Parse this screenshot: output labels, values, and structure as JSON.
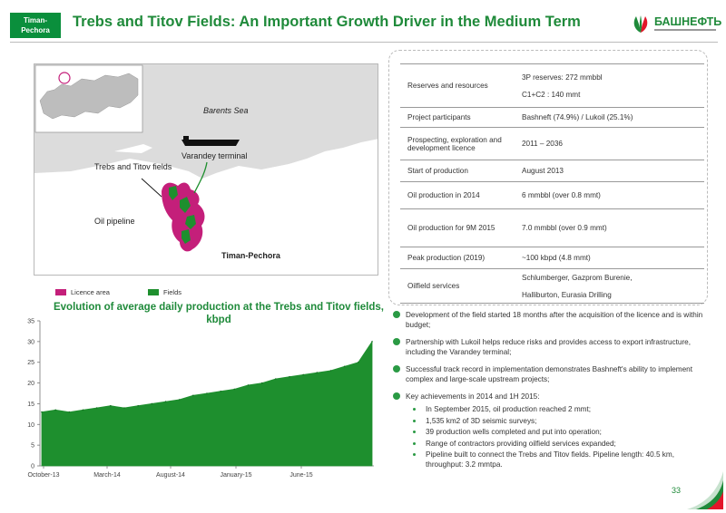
{
  "header": {
    "region_line1": "Timan-",
    "region_line2": "Pechora",
    "title": "Trebs and Titov Fields: An Important Growth Driver in the Medium Term",
    "logo_text": "БАШНЕФТЬ"
  },
  "map": {
    "labels": {
      "barents_sea": "Barents Sea",
      "varandey_terminal": "Varandey terminal",
      "trebs_titov": "Trebs and Titov fields",
      "oil_pipeline": "Oil pipeline",
      "timan_pechora": "Timan-Pechora"
    },
    "legend": {
      "licence_area": "Licence area",
      "fields": "Fields"
    },
    "colors": {
      "licence_area": "#c41f7a",
      "fields": "#1e8f2e",
      "sea": "#dcdcdc",
      "land": "#ffffff"
    }
  },
  "table": {
    "rows": [
      {
        "key": "Reserves and resources",
        "value": "3P reserves: 272 mmbbl",
        "value2": "C1+C2 : 140 mmt"
      },
      {
        "key": "Project participants",
        "value": "Bashneft (74.9%) / Lukoil (25.1%)"
      },
      {
        "key": "Prospecting, exploration and development licence",
        "value": "2011 – 2036"
      },
      {
        "key": "Start of production",
        "value": "August 2013"
      },
      {
        "key": "Oil production in 2014",
        "value": "6 mmbbl (over  0.8 mmt)"
      },
      {
        "key": "Oil production for 9M 2015",
        "value": "  7.0 mmbbl  (over 0.9 mmt)"
      },
      {
        "key": "Peak production (2019)",
        "value": "~100 kbpd (4.8 mmt)"
      },
      {
        "key": "Oilfield services",
        "value": "Schlumberger, Gazprom Burenie,",
        "value2": "Halliburton, Eurasia Drilling"
      }
    ]
  },
  "bullets": [
    "Development of the field started 18 months after the acquisition of the licence and is within budget;",
    "Partnership with Lukoil helps reduce risks and provides access to export infrastructure, including the Varandey terminal;",
    "Successful track record in implementation demonstrates Bashneft's ability to implement complex and large-scale upstream projects;",
    "Key achievements in  2014 and 1H  2015:"
  ],
  "sub_bullets": [
    "In September 2015, oil production reached 2 mmt;",
    "1,535  km2 of 3D seismic surveys;",
    "39 production wells completed and put into operation;",
    "Range of contractors providing oilfield services expanded;",
    "Pipeline built to connect the Trebs and Titov fields. Pipeline length: 40.5 km, throughput: 3.2 mmtpa."
  ],
  "page_number": "33",
  "chart_data": {
    "type": "area",
    "title": "Evolution of average daily production at the Trebs and Titov fields, kbpd",
    "x_tick_labels": [
      "October-13",
      "March-14",
      "August-14",
      "January-15",
      "June-15"
    ],
    "ylim": [
      0,
      35
    ],
    "y_ticks": [
      0,
      5,
      10,
      15,
      20,
      25,
      30,
      35
    ],
    "color": "#1e8f2e",
    "x": [
      "2013-10",
      "2013-11",
      "2013-12",
      "2014-01",
      "2014-02",
      "2014-03",
      "2014-04",
      "2014-05",
      "2014-06",
      "2014-07",
      "2014-08",
      "2014-09",
      "2014-10",
      "2014-11",
      "2014-12",
      "2015-01",
      "2015-02",
      "2015-03",
      "2015-04",
      "2015-05",
      "2015-06",
      "2015-07",
      "2015-08",
      "2015-09",
      "2015-10"
    ],
    "values": [
      13,
      13.5,
      13,
      13.5,
      14,
      14.5,
      14,
      14.5,
      15,
      15.5,
      16,
      17,
      17.5,
      18,
      18.5,
      19.5,
      20,
      21,
      21.5,
      22,
      22.5,
      23,
      24,
      25,
      30
    ]
  }
}
